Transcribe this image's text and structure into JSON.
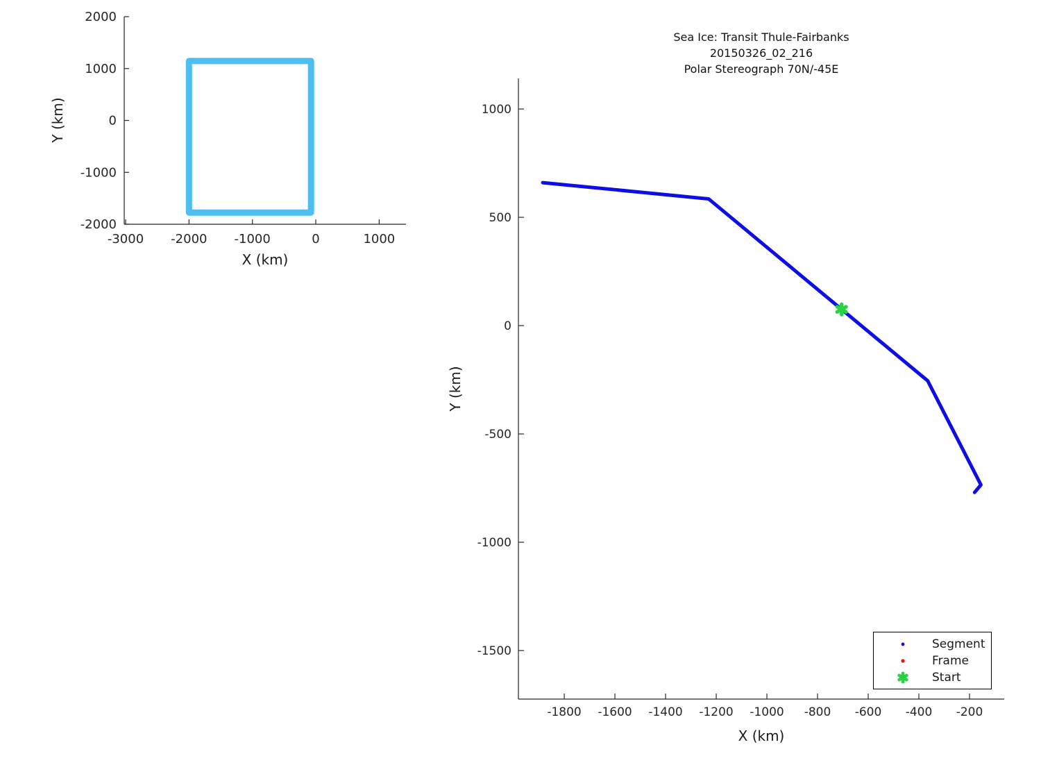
{
  "colors": {
    "axis": "#262626",
    "tick_text": "#262626",
    "label_text": "#1a1a1a",
    "segment_blue": "#0d0de8",
    "frame_red": "#e81414",
    "start_green": "#2bd145",
    "swath_cyan": "#4dbeee",
    "background": "#ffffff"
  },
  "chart_data": [
    {
      "type": "line",
      "title": "",
      "xlabel": "X (km)",
      "ylabel": "Y (km)",
      "xlim": [
        -3022,
        1423
      ],
      "ylim": [
        -2000,
        2000
      ],
      "xticks": [
        -3000,
        -2000,
        -1000,
        0,
        1000
      ],
      "yticks": [
        2000,
        1000,
        0,
        -1000,
        -2000
      ],
      "grid": false,
      "legend_position": "none",
      "series": [
        {
          "name": "swath-outline",
          "color": "#4dbeee",
          "line_width": 9,
          "points": [
            [
              -2000,
              1145
            ],
            [
              -75,
              1145
            ],
            [
              -75,
              -1775
            ],
            [
              -2000,
              -1775
            ],
            [
              -2000,
              1145
            ]
          ]
        }
      ]
    },
    {
      "type": "line",
      "title_lines": [
        "Sea Ice: Transit Thule-Fairbanks",
        "20150326_02_216",
        "Polar Stereograph 70N/-45E"
      ],
      "xlabel": "X (km)",
      "ylabel": "Y (km)",
      "xlim": [
        -1981,
        -63
      ],
      "ylim": [
        -1724,
        1141
      ],
      "xticks": [
        -1800,
        -1600,
        -1400,
        -1200,
        -1000,
        -800,
        -600,
        -400,
        -200
      ],
      "yticks": [
        1000,
        500,
        0,
        -500,
        -1000,
        -1500
      ],
      "grid": false,
      "legend_position": "bottom-right",
      "series": [
        {
          "name": "segment-track",
          "color": "#0d0de8",
          "line_width": 5,
          "points": [
            [
              -1885,
              660
            ],
            [
              -1230,
              585
            ],
            [
              -365,
              -255
            ],
            [
              -155,
              -735
            ],
            [
              -180,
              -770
            ]
          ]
        }
      ],
      "markers": [
        {
          "name": "start",
          "shape": "asterisk",
          "color": "#2bd145",
          "x": -705,
          "y": 75,
          "size": 15
        }
      ],
      "legend": {
        "items": [
          {
            "label": "Segment",
            "marker": "dot",
            "color": "#0d0de8"
          },
          {
            "label": "Frame",
            "marker": "dot",
            "color": "#e81414"
          },
          {
            "label": "Start",
            "marker": "asterisk",
            "color": "#2bd145"
          }
        ]
      }
    }
  ]
}
